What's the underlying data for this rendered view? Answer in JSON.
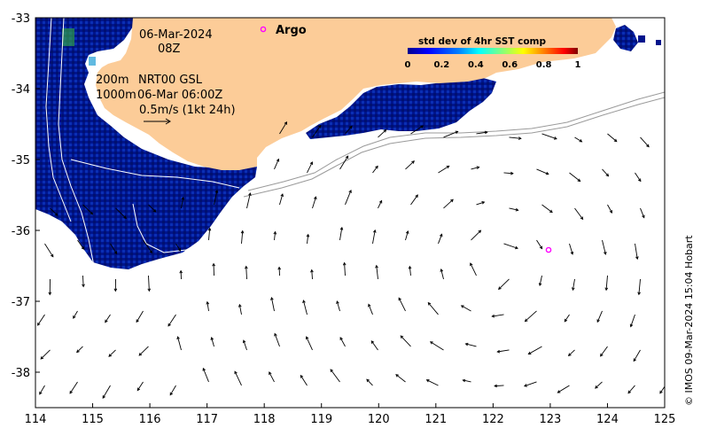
{
  "map": {
    "date": "06-Mar-2024",
    "hour": "08Z",
    "depth_contours": "200m",
    "depth_contours_2": "1000m",
    "product": "NRT00 GSL",
    "product_time": "06-Mar 06:00Z",
    "scale_label": "0.5m/s (1kt 24h)",
    "argo_label": "Argo",
    "credit": "© IMOS 09-Mar-2024 15:04 Hobart",
    "colors": {
      "land": "#fccc98",
      "sst_low": "#00148c",
      "sst_mid": "#1e5ae6",
      "argo": "#ff00ff",
      "vector": "#000000",
      "contour": "#ffffff",
      "shelf_edge": "#9a9a9a"
    },
    "colorbar": {
      "title": "std dev of 4hr SST comp",
      "ticks": [
        "0",
        "0.2",
        "0.4",
        "0.6",
        "0.8",
        "1"
      ],
      "colors": [
        "#00008f",
        "#0000ff",
        "#0080ff",
        "#00ffff",
        "#80ff80",
        "#ffff00",
        "#ff8000",
        "#ff0000",
        "#800000"
      ]
    },
    "x_axis": {
      "ticks": [
        "114",
        "115",
        "116",
        "117",
        "118",
        "119",
        "120",
        "121",
        "122",
        "123",
        "124",
        "125"
      ],
      "range": [
        114,
        125
      ]
    },
    "y_axis": {
      "ticks": [
        "-33",
        "-34",
        "-35",
        "-36",
        "-37",
        "-38"
      ],
      "range": [
        -38.5,
        -33
      ]
    },
    "argo_float": {
      "lon": 123.0,
      "lat": -36.3
    }
  }
}
